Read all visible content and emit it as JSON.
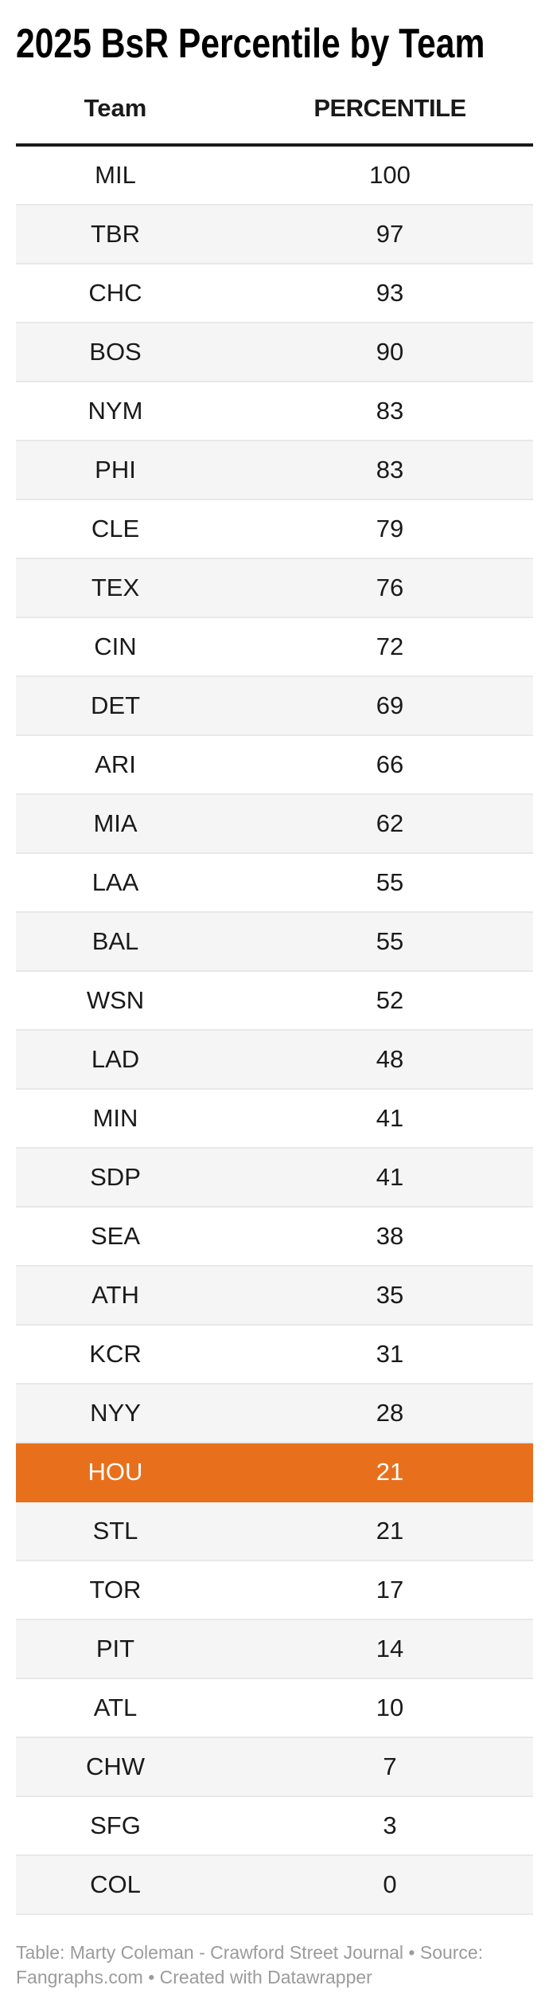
{
  "title": "2025 BsR Percentile by Team",
  "table": {
    "columns": {
      "team": "Team",
      "percentile": "PERCENTILE"
    },
    "rows": [
      {
        "team": "MIL",
        "value": "100"
      },
      {
        "team": "TBR",
        "value": "97"
      },
      {
        "team": "CHC",
        "value": "93"
      },
      {
        "team": "BOS",
        "value": "90"
      },
      {
        "team": "NYM",
        "value": "83"
      },
      {
        "team": "PHI",
        "value": "83"
      },
      {
        "team": "CLE",
        "value": "79"
      },
      {
        "team": "TEX",
        "value": "76"
      },
      {
        "team": "CIN",
        "value": "72"
      },
      {
        "team": "DET",
        "value": "69"
      },
      {
        "team": "ARI",
        "value": "66"
      },
      {
        "team": "MIA",
        "value": "62"
      },
      {
        "team": "LAA",
        "value": "55"
      },
      {
        "team": "BAL",
        "value": "55"
      },
      {
        "team": "WSN",
        "value": "52"
      },
      {
        "team": "LAD",
        "value": "48"
      },
      {
        "team": "MIN",
        "value": "41"
      },
      {
        "team": "SDP",
        "value": "41"
      },
      {
        "team": "SEA",
        "value": "38"
      },
      {
        "team": "ATH",
        "value": "35"
      },
      {
        "team": "KCR",
        "value": "31"
      },
      {
        "team": "NYY",
        "value": "28"
      },
      {
        "team": "HOU",
        "value": "21",
        "highlight": true
      },
      {
        "team": "STL",
        "value": "21"
      },
      {
        "team": "TOR",
        "value": "17"
      },
      {
        "team": "PIT",
        "value": "14"
      },
      {
        "team": "ATL",
        "value": "10"
      },
      {
        "team": "CHW",
        "value": "7"
      },
      {
        "team": "SFG",
        "value": "3"
      },
      {
        "team": "COL",
        "value": "0"
      }
    ]
  },
  "footer": {
    "line1": "Table: Marty Coleman - Crawford Street Journal • Source:",
    "line2": "Fangraphs.com • Created with Datawrapper"
  },
  "colors": {
    "highlight": "#E8701C",
    "highlight_text": "#FFFFFF",
    "stripe": "#F5F5F5",
    "row_border": "#E8E8E8",
    "header_rule": "#1A1A1A",
    "footer_text": "#9B9B9B"
  },
  "chart_data": {
    "type": "table",
    "title": "2025 BsR Percentile by Team",
    "columns": [
      "Team",
      "PERCENTILE"
    ],
    "categories": [
      "MIL",
      "TBR",
      "CHC",
      "BOS",
      "NYM",
      "PHI",
      "CLE",
      "TEX",
      "CIN",
      "DET",
      "ARI",
      "MIA",
      "LAA",
      "BAL",
      "WSN",
      "LAD",
      "MIN",
      "SDP",
      "SEA",
      "ATH",
      "KCR",
      "NYY",
      "HOU",
      "STL",
      "TOR",
      "PIT",
      "ATL",
      "CHW",
      "SFG",
      "COL"
    ],
    "values": [
      100,
      97,
      93,
      90,
      83,
      83,
      79,
      76,
      72,
      69,
      66,
      62,
      55,
      55,
      52,
      48,
      41,
      41,
      38,
      35,
      31,
      28,
      21,
      21,
      17,
      14,
      10,
      7,
      3,
      0
    ],
    "highlighted_row": {
      "team": "HOU",
      "value": 21,
      "color": "#E8701C"
    },
    "layout_hints": {
      "striped_rows": true,
      "value_range": [
        0,
        100
      ],
      "sorted": "descending"
    },
    "footer": "Table: Marty Coleman - Crawford Street Journal • Source: Fangraphs.com • Created with Datawrapper"
  }
}
